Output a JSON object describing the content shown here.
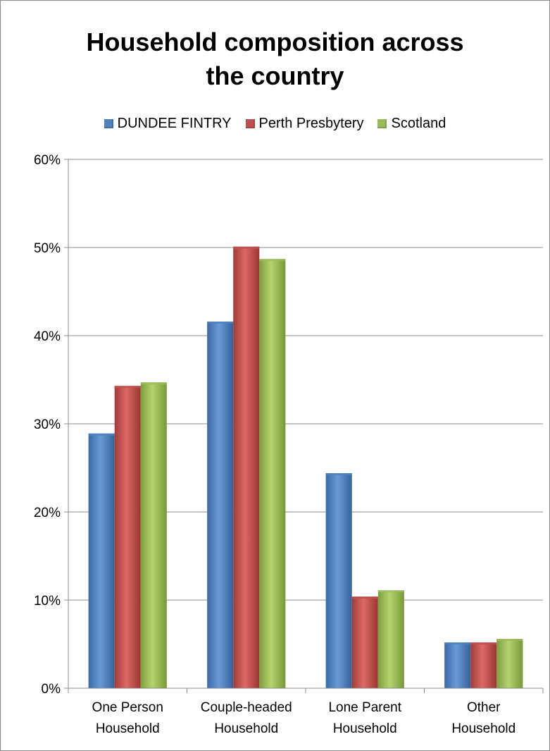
{
  "chart_data": {
    "type": "bar",
    "title": "Household composition across the country",
    "title_lines": [
      "Household composition across",
      "the country"
    ],
    "categories": [
      "One Person Household",
      "Couple-headed Household",
      "Lone Parent Household",
      "Other Household"
    ],
    "category_lines": [
      [
        "One Person",
        "Household"
      ],
      [
        "Couple-headed",
        "Household"
      ],
      [
        "Lone Parent",
        "Household"
      ],
      [
        "Other",
        "Household"
      ]
    ],
    "series": [
      {
        "name": "DUNDEE FINTRY",
        "color": "#4f81bd",
        "values": [
          28.9,
          41.6,
          24.4,
          5.2
        ]
      },
      {
        "name": "Perth Presbytery",
        "color": "#c0504d",
        "values": [
          34.3,
          50.1,
          10.4,
          5.2
        ]
      },
      {
        "name": "Scotland",
        "color": "#9bbb59",
        "values": [
          34.7,
          48.7,
          11.1,
          5.6
        ]
      }
    ],
    "yticks": [
      "0%",
      "10%",
      "20%",
      "30%",
      "40%",
      "50%",
      "60%"
    ],
    "ylim": [
      0,
      60
    ],
    "grid": true,
    "legend_position": "top"
  }
}
